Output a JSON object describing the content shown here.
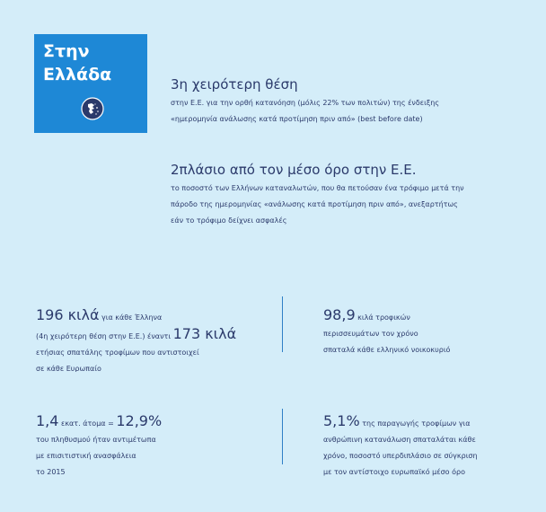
{
  "badge": {
    "title_line1": "Στην",
    "title_line2": "Ελλάδα",
    "icon": "greece-map-globe-icon"
  },
  "block1": {
    "heading": "3η χειρότερη θέση",
    "lines": [
      "στην Ε.Ε. για την ορθή κατανόηση (μόλις 22% των πολιτών) της ένδειξης",
      "«ημερομηνία ανάλωσης κατά προτίμηση πριν από» (best before date)"
    ]
  },
  "block2": {
    "heading": "2πλάσιο από τον μέσο όρο στην Ε.Ε.",
    "lines": [
      "το ποσοστό των Ελλήνων καταναλωτών, που θα πετούσαν ένα τρόφιμο μετά την",
      "πάροδο της ημερομηνίας «ανάλωσης κατά προτίμηση πριν από», ανεξαρτήτως",
      "εάν το τρόφιμο δείχνει ασφαλές"
    ]
  },
  "stat1": {
    "big1": "196 κιλά",
    "text1": " για κάθε Έλληνα",
    "text2": "(4η χειρότερη θέση στην Ε.Ε.) έναντι ",
    "big2": "173 κιλά",
    "line3": "ετήσιας σπατάλης τροφίμων που αντιστοιχεί",
    "line4": "σε κάθε Ευρωπαίο"
  },
  "stat2": {
    "big": "98,9",
    "text": " κιλά τροφικών",
    "line2": "περισσευμάτων τον χρόνο",
    "line3": "σπαταλά κάθε ελληνικό νοικοκυριό"
  },
  "stat3": {
    "big1": "1,4",
    "text1": " εκατ. άτομα = ",
    "big2": "12,9%",
    "line2": "του πληθυσμού ήταν αντιμέτωπα",
    "line3": "με επισιτιστική ανασφάλεια",
    "line4": "το 2015"
  },
  "stat4": {
    "big": "5,1%",
    "text": " της παραγωγής τροφίμων για",
    "line2": "ανθρώπινη κατανάλωση σπαταλάται κάθε",
    "line3": "χρόνο, ποσοστό υπερδιπλάσιο σε σύγκριση",
    "line4": "με τον αντίστοιχο ευρωπαϊκό μέσο όρο"
  },
  "colors": {
    "background": "#d4edf9",
    "badge": "#1e88d6",
    "text": "#2b3a6b",
    "divider": "#2f7fc6"
  }
}
